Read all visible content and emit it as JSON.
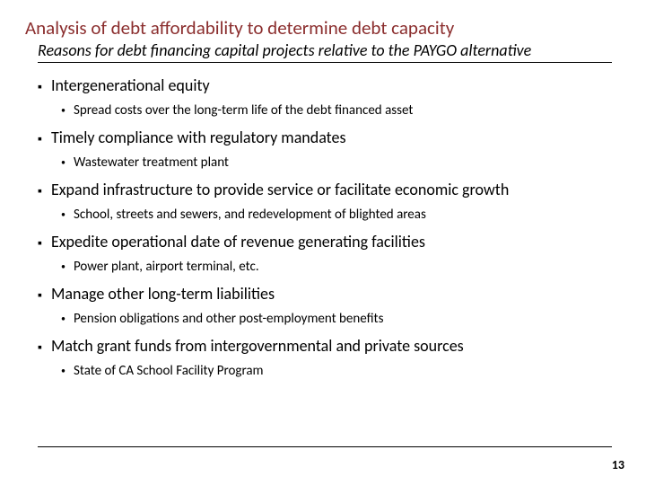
{
  "title": "Analysis of debt affordability to determine debt capacity",
  "subtitle": "Reasons for debt financing capital projects relative to the PAYGO alternative",
  "items": [
    {
      "main": "Intergenerational equity",
      "sub": "Spread costs over the long-term life of the debt financed asset"
    },
    {
      "main": "Timely compliance with regulatory mandates",
      "sub": "Wastewater treatment plant"
    },
    {
      "main": "Expand infrastructure to provide service or facilitate economic growth",
      "sub": "School, streets and sewers, and redevelopment of blighted areas"
    },
    {
      "main": "Expedite operational date of revenue generating facilities",
      "sub": "Power plant, airport terminal, etc."
    },
    {
      "main": "Manage other long-term liabilities",
      "sub": "Pension obligations and other post-employment benefits"
    },
    {
      "main": "Match grant funds from intergovernmental and private sources",
      "sub": "State of CA School Facility Program"
    }
  ],
  "page_number": "13",
  "colors": {
    "title": "#8b2e2e",
    "text": "#000000",
    "rule": "#000000",
    "background": "#ffffff"
  },
  "fontsizes": {
    "title": 21,
    "subtitle": 18,
    "main": 18,
    "sub": 15,
    "pagenum": 14
  }
}
